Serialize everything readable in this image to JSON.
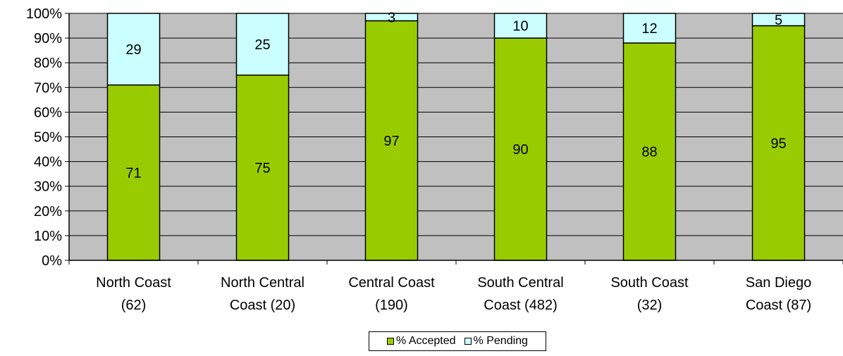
{
  "chart_data": {
    "type": "bar",
    "stacked": true,
    "normalized": true,
    "categories": [
      [
        "North Coast",
        "(62)"
      ],
      [
        "North Central",
        "Coast (20)"
      ],
      [
        "Central Coast",
        "(190)"
      ],
      [
        "South Central",
        "Coast (482)"
      ],
      [
        "South Coast",
        "(32)"
      ],
      [
        "San Diego",
        "Coast (87)"
      ]
    ],
    "series": [
      {
        "name": "% Accepted",
        "values": [
          71,
          75,
          97,
          90,
          88,
          95
        ],
        "color": "#99CC00"
      },
      {
        "name": "% Pending",
        "values": [
          29,
          25,
          3,
          10,
          12,
          5
        ],
        "color": "#CCFFFF"
      }
    ],
    "y_ticks": [
      "0%",
      "10%",
      "20%",
      "30%",
      "40%",
      "50%",
      "60%",
      "70%",
      "80%",
      "90%",
      "100%"
    ],
    "ylim": [
      0,
      100
    ],
    "grid": true,
    "plot_background": "#C0C0C0",
    "legend": "bottom",
    "title": "",
    "xlabel": "",
    "ylabel": ""
  }
}
